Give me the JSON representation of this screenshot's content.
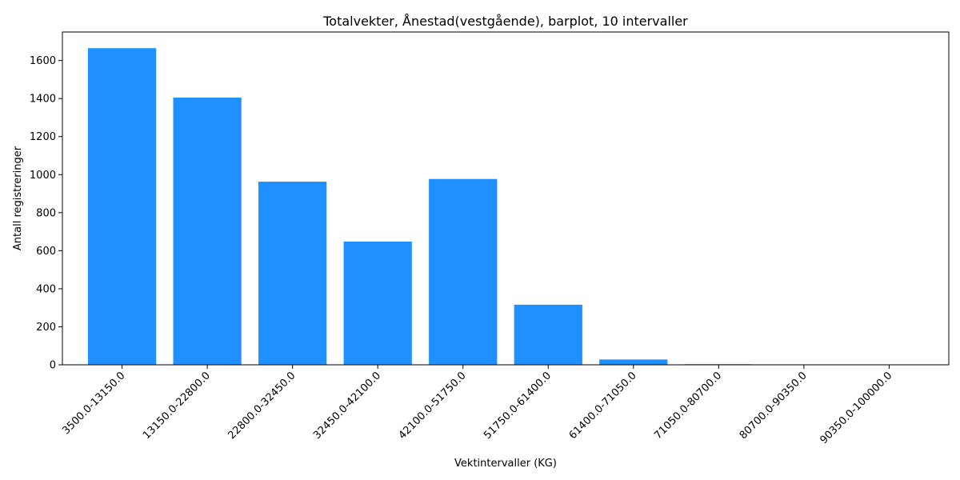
{
  "chart_data": {
    "type": "bar",
    "title": "Totalvekter, Ånestad(vestgående), barplot, 10 intervaller",
    "xlabel": "Vektintervaller (KG)",
    "ylabel": "Antall registreringer",
    "categories": [
      "3500.0-13150.0",
      "13150.0-22800.0",
      "22800.0-32450.0",
      "32450.0-42100.0",
      "42100.0-51750.0",
      "51750.0-61400.0",
      "61400.0-71050.0",
      "71050.0-80700.0",
      "80700.0-90350.0",
      "90350.0-100000.0"
    ],
    "values": [
      1665,
      1405,
      963,
      648,
      977,
      316,
      28,
      3,
      0,
      2
    ],
    "ylim": [
      0,
      1750
    ],
    "yticks": [
      "0",
      "200",
      "400",
      "600",
      "800",
      "1000",
      "1200",
      "1400",
      "1600"
    ],
    "bar_color": "#1e90ff",
    "grid": false
  }
}
